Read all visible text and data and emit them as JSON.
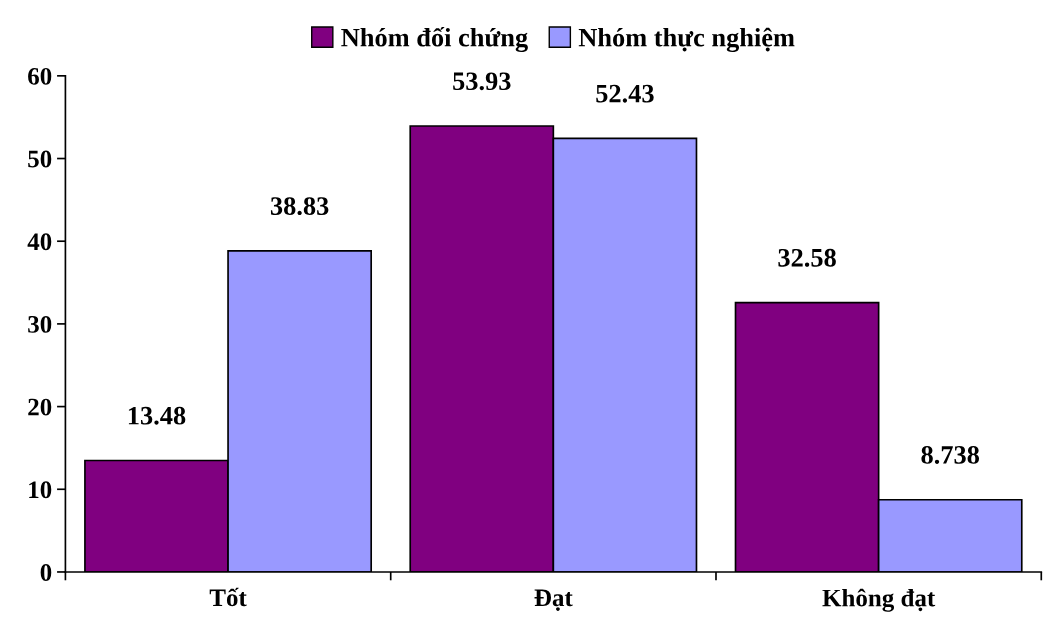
{
  "chart_data": {
    "type": "bar",
    "categories": [
      "Tốt",
      "Đạt",
      "Không đạt"
    ],
    "series": [
      {
        "name": "Nhóm đối chứng",
        "color": "#800080",
        "values": [
          13.48,
          53.93,
          32.58
        ]
      },
      {
        "name": "Nhóm thực nghiệm",
        "color": "#9999ff",
        "values": [
          38.83,
          52.43,
          8.738
        ]
      }
    ],
    "ylim": [
      0,
      60
    ],
    "yticks": [
      0,
      10,
      20,
      30,
      40,
      50,
      60
    ],
    "data_labels": true,
    "legend": "top",
    "grid": false
  }
}
